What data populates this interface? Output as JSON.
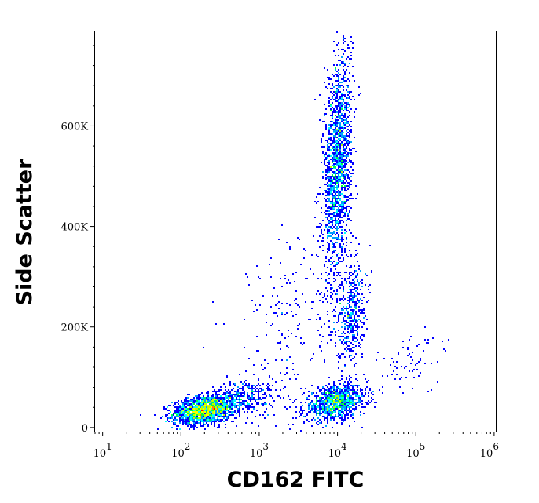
{
  "chart_data": {
    "type": "scatter",
    "subtype": "density-dot-plot",
    "title": "",
    "xlabel": "CD162 FITC",
    "ylabel": "Side Scatter",
    "x_scale": "log",
    "xlim": [
      8,
      1050000
    ],
    "ylim": [
      -8000,
      788000
    ],
    "x_ticks": [
      {
        "value": 10,
        "base": "10",
        "exp": "1"
      },
      {
        "value": 100,
        "base": "10",
        "exp": "2"
      },
      {
        "value": 1000,
        "base": "10",
        "exp": "3"
      },
      {
        "value": 10000,
        "base": "10",
        "exp": "4"
      },
      {
        "value": 100000,
        "base": "10",
        "exp": "5"
      },
      {
        "value": 1000000,
        "base": "10",
        "exp": "6"
      }
    ],
    "y_ticks": [
      {
        "value": 0,
        "label": "0"
      },
      {
        "value": 200000,
        "label": "200K"
      },
      {
        "value": 400000,
        "label": "400K"
      },
      {
        "value": 600000,
        "label": "600K"
      }
    ],
    "grid": false,
    "legend": "none",
    "colormap": [
      "#0000ff",
      "#00a0ff",
      "#00ffff",
      "#00ff40",
      "#c0ff00",
      "#ffff00",
      "#ff8000",
      "#ff0000"
    ],
    "populations": [
      {
        "x_center": 200,
        "y_center": 35000,
        "x_spread_decades": 0.2,
        "y_spread": 14000,
        "events": 1700
      },
      {
        "x_center": 650,
        "y_center": 60000,
        "x_spread_decades": 0.2,
        "y_spread": 18000,
        "events": 350
      },
      {
        "x_center": 9500,
        "y_center": 50000,
        "x_spread_decades": 0.2,
        "y_spread": 17000,
        "events": 1100
      },
      {
        "x_center": 10000,
        "y_center": 520000,
        "x_spread_decades": 0.09,
        "y_spread": 110000,
        "events": 1800
      },
      {
        "x_center": 15000,
        "y_center": 230000,
        "x_spread_decades": 0.09,
        "y_spread": 50000,
        "events": 450
      },
      {
        "x_center": 2500,
        "y_center": 200000,
        "x_spread_decades": 0.4,
        "y_spread": 110000,
        "events": 220
      },
      {
        "x_center": 80000,
        "y_center": 130000,
        "x_spread_decades": 0.25,
        "y_spread": 30000,
        "events": 70
      }
    ]
  }
}
